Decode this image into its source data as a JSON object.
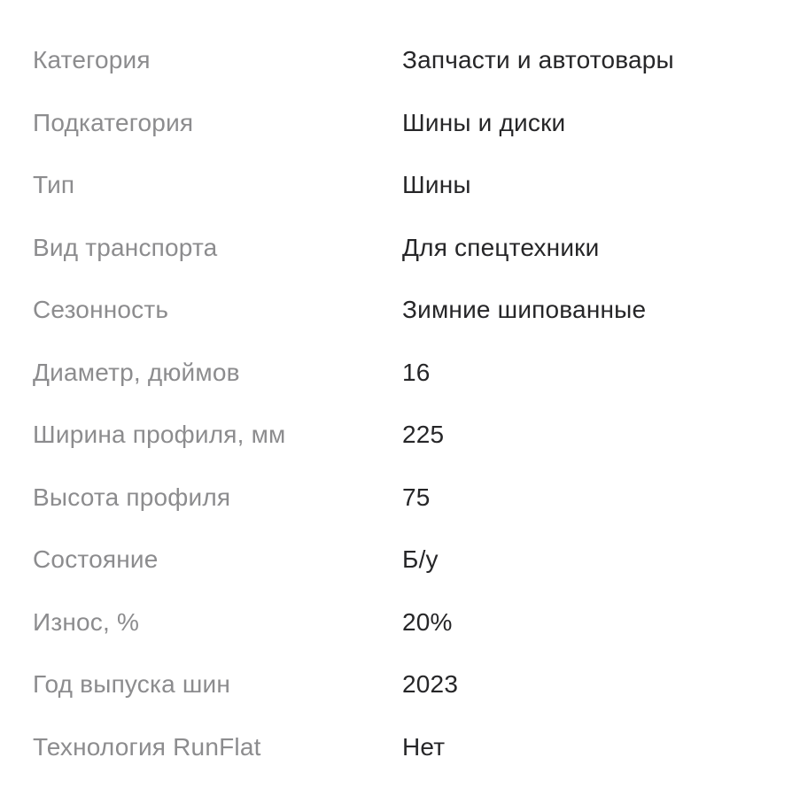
{
  "page": {
    "background_color": "#ffffff",
    "label_color": "#8c8c8e",
    "value_color": "#262628"
  },
  "spec_table": {
    "rows": [
      {
        "label": "Категория",
        "value": "Запчасти и автотовары"
      },
      {
        "label": "Подкатегория",
        "value": "Шины и диски"
      },
      {
        "label": "Тип",
        "value": "Шины"
      },
      {
        "label": "Вид транспорта",
        "value": "Для спецтехники"
      },
      {
        "label": "Сезонность",
        "value": "Зимние шипованные"
      },
      {
        "label": "Диаметр, дюймов",
        "value": "16"
      },
      {
        "label": "Ширина профиля, мм",
        "value": "225"
      },
      {
        "label": "Высота профиля",
        "value": "75"
      },
      {
        "label": "Состояние",
        "value": "Б/у"
      },
      {
        "label": "Износ, %",
        "value": "20%"
      },
      {
        "label": "Год выпуска шин",
        "value": "2023"
      },
      {
        "label": "Технология RunFlat",
        "value": "Нет"
      }
    ]
  }
}
